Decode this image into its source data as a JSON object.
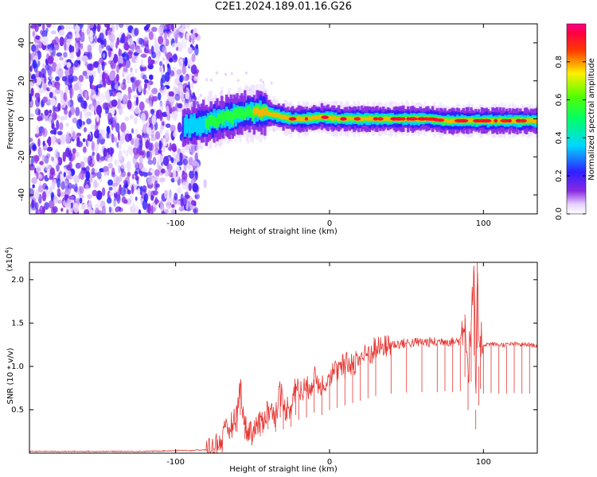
{
  "title": "C2E1.2024.189.01.16.G26",
  "chart_data": [
    {
      "type": "heatmap",
      "xlabel": "Height of straight line (km)",
      "ylabel": "Frequency (Hz)",
      "xlim": [
        -195,
        135
      ],
      "ylim": [
        -50,
        50
      ],
      "xticks": [
        -100,
        0,
        100
      ],
      "xtick_labels": [
        "-100",
        "0",
        "100"
      ],
      "yticks": [
        -40,
        -20,
        0,
        20,
        40
      ],
      "ytick_labels": [
        "-40",
        "-20",
        "0",
        "20",
        "40"
      ],
      "colorbar": {
        "label": "Normalized spectral amplitude",
        "range": [
          0,
          1
        ],
        "ticks": [
          0.0,
          0.2,
          0.4,
          0.6,
          0.8
        ],
        "tick_labels": [
          "0.0",
          "0.2",
          "0.4",
          "0.6",
          "0.8"
        ],
        "colormap": "rainbow (white-violet-blue-cyan-green-yellow-red-magenta)"
      },
      "noise_region_x": [
        -195,
        -85
      ],
      "signal_trace": {
        "x": [
          -95,
          -85,
          -75,
          -65,
          -55,
          -45,
          -35,
          -25,
          -15,
          -5,
          5,
          15,
          25,
          35,
          45,
          55,
          65,
          75,
          85,
          95,
          105,
          115,
          125,
          135
        ],
        "frequency": [
          -4,
          -3,
          -1,
          1,
          3,
          4,
          2,
          0,
          0,
          1,
          0,
          0,
          0,
          0,
          0,
          0,
          0,
          -1,
          -1,
          -1,
          -1,
          -1,
          -1,
          -1
        ],
        "peak_amplitude": [
          0.3,
          0.45,
          0.55,
          0.6,
          0.7,
          0.75,
          0.8,
          0.9,
          0.9,
          0.85,
          0.95,
          0.9,
          0.85,
          0.85,
          0.85,
          0.85,
          0.85,
          0.9,
          0.9,
          0.85,
          0.9,
          0.9,
          0.9,
          0.85
        ]
      }
    },
    {
      "type": "line",
      "xlabel": "Height of straight line (km)",
      "ylabel": "SNR (10 * v/v)",
      "yscale_label": "(x10",
      "yscale_exp": "4",
      "xlim": [
        -195,
        135
      ],
      "ylim": [
        0,
        2.2
      ],
      "xticks": [
        -100,
        0,
        100
      ],
      "xtick_labels": [
        "-100",
        "0",
        "100"
      ],
      "yticks": [
        0.5,
        1.0,
        1.5,
        2.0
      ],
      "ytick_labels": [
        "0.5",
        "1.0",
        "1.5",
        "2.0"
      ],
      "color": "#e63632",
      "series": [
        {
          "x": [
            -195,
            -180,
            -160,
            -140,
            -120,
            -100,
            -90,
            -80,
            -75,
            -70,
            -65,
            -60,
            -58,
            -55,
            -50,
            -45,
            -40,
            -35,
            -32,
            -30,
            -25,
            -22,
            -20,
            -15,
            -10,
            -5,
            0,
            5,
            10,
            15,
            20,
            25,
            30,
            40,
            50,
            60,
            70,
            75,
            80,
            85,
            88,
            90,
            92,
            94,
            95,
            96,
            97,
            98,
            100,
            105,
            110,
            115,
            120,
            125,
            130,
            135
          ],
          "values": [
            0.02,
            0.02,
            0.02,
            0.02,
            0.02,
            0.03,
            0.03,
            0.04,
            0.06,
            0.15,
            0.3,
            0.45,
            0.8,
            0.3,
            0.25,
            0.35,
            0.5,
            0.45,
            0.75,
            0.5,
            0.55,
            0.8,
            0.7,
            0.75,
            0.85,
            0.8,
            0.9,
            0.95,
            1.0,
            1.05,
            1.1,
            1.15,
            1.2,
            1.25,
            1.27,
            1.28,
            1.28,
            1.3,
            1.28,
            1.3,
            1.6,
            0.9,
            1.5,
            2.05,
            0.5,
            2.2,
            1.0,
            1.35,
            1.25,
            1.26,
            1.25,
            1.25,
            1.26,
            1.25,
            1.25,
            1.24
          ]
        }
      ]
    }
  ]
}
